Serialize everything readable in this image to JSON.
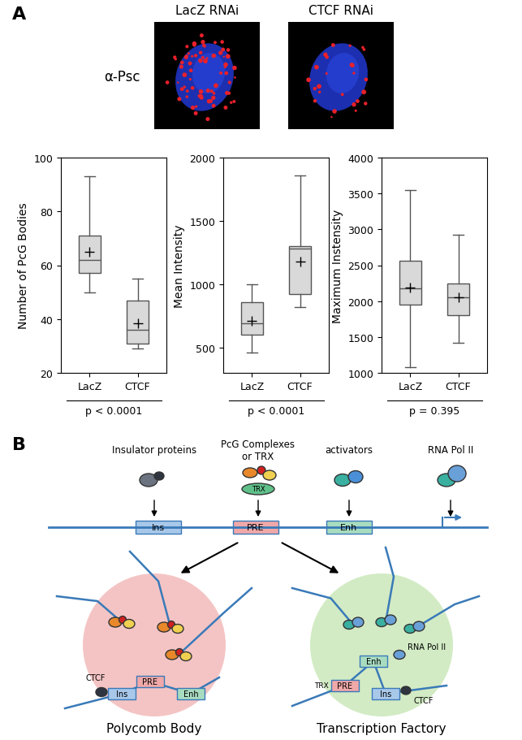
{
  "panel_labels": [
    "A",
    "B"
  ],
  "images": {
    "stain": "α-Psc",
    "conditions": [
      "LacZ RNAi",
      "CTCF RNAi"
    ]
  },
  "chart_data": [
    {
      "type": "box",
      "ylabel": "Number of PcG Bodies",
      "categories": [
        "LacZ",
        "CTCF"
      ],
      "color": "#d9d9d9",
      "boxes": [
        {
          "whisker_low": 50,
          "q1": 57,
          "median": 62,
          "q3": 71,
          "whisker_high": 93,
          "mean": 65
        },
        {
          "whisker_low": 29,
          "q1": 31,
          "median": 36,
          "q3": 47,
          "whisker_high": 55,
          "mean": 38.5
        }
      ],
      "ylim": [
        20,
        100
      ],
      "yticks": [
        20,
        40,
        60,
        80,
        100
      ],
      "p_value": "p < 0.0001"
    },
    {
      "type": "box",
      "ylabel": "Mean Intensity",
      "categories": [
        "LacZ",
        "CTCF"
      ],
      "color": "#d9d9d9",
      "boxes": [
        {
          "whisker_low": 460,
          "q1": 600,
          "median": 690,
          "q3": 860,
          "whisker_high": 1000,
          "mean": 710
        },
        {
          "whisker_low": 820,
          "q1": 920,
          "median": 1280,
          "q3": 1300,
          "whisker_high": 1860,
          "mean": 1180
        }
      ],
      "ylim": [
        300,
        2000
      ],
      "yticks": [
        500,
        1000,
        1500,
        2000
      ],
      "p_value": "p < 0.0001"
    },
    {
      "type": "box",
      "ylabel": "Maximum Instensity",
      "categories": [
        "LacZ",
        "CTCF"
      ],
      "color": "#d9d9d9",
      "boxes": [
        {
          "whisker_low": 1080,
          "q1": 1950,
          "median": 2180,
          "q3": 2560,
          "whisker_high": 3550,
          "mean": 2190
        },
        {
          "whisker_low": 1420,
          "q1": 1800,
          "median": 2050,
          "q3": 2250,
          "whisker_high": 2930,
          "mean": 2050
        }
      ],
      "ylim": [
        1000,
        4000
      ],
      "yticks": [
        1000,
        1500,
        2000,
        2500,
        3000,
        3500,
        4000
      ],
      "p_value": "p = 0.395"
    }
  ],
  "diagram": {
    "factors": [
      "Insulator proteins",
      "PcG Complexes\nor TRX",
      "activators",
      "RNA Pol II"
    ],
    "trx": "TRX",
    "dna_elements": [
      "Ins",
      "PRE",
      "Enh"
    ],
    "bodies": [
      {
        "name": "Polycomb Body",
        "insulator": "CTCF"
      },
      {
        "name": "Transcription Factory",
        "insulator": "CTCF",
        "trx": "TRX",
        "polymerase": "RNA Pol II"
      }
    ]
  }
}
